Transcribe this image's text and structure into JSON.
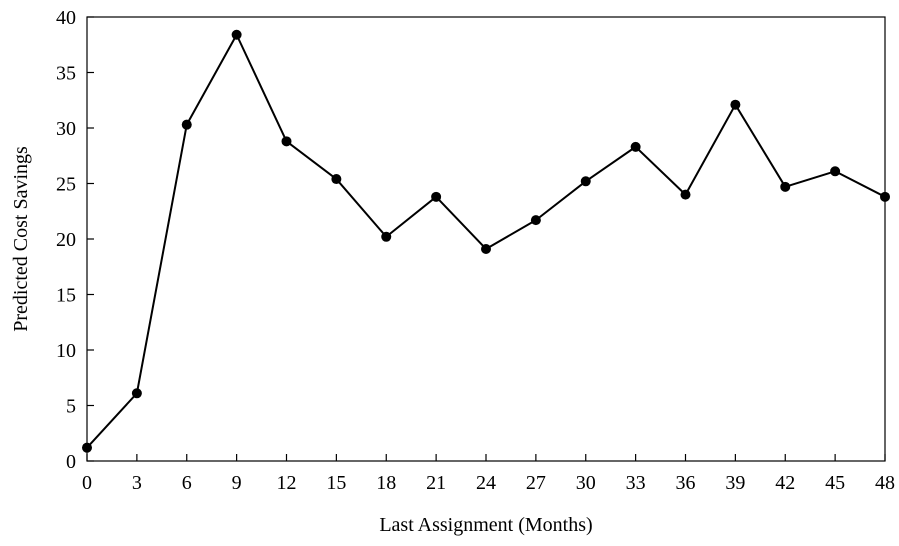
{
  "chart_data": {
    "type": "line",
    "title": "",
    "xlabel": "Last Assignment (Months)",
    "ylabel": "Predicted Cost Savings",
    "x": [
      0,
      3,
      6,
      9,
      12,
      15,
      18,
      21,
      24,
      27,
      30,
      33,
      36,
      39,
      42,
      45,
      48
    ],
    "x_ticks": [
      "0",
      "3",
      "6",
      "9",
      "12",
      "15",
      "18",
      "21",
      "24",
      "27",
      "30",
      "33",
      "36",
      "39",
      "42",
      "45",
      "48"
    ],
    "y_ticks": [
      "0",
      "5",
      "10",
      "15",
      "20",
      "25",
      "30",
      "35",
      "40"
    ],
    "xlim": [
      0,
      48
    ],
    "ylim": [
      0,
      40
    ],
    "grid": false,
    "legend": "none",
    "series": [
      {
        "values": [
          1.2,
          6.1,
          30.3,
          38.4,
          28.8,
          25.4,
          20.2,
          23.8,
          19.1,
          21.7,
          25.2,
          28.3,
          24.0,
          32.1,
          24.7,
          26.1,
          23.8
        ],
        "color": "#000000",
        "marker": "circle"
      }
    ]
  }
}
